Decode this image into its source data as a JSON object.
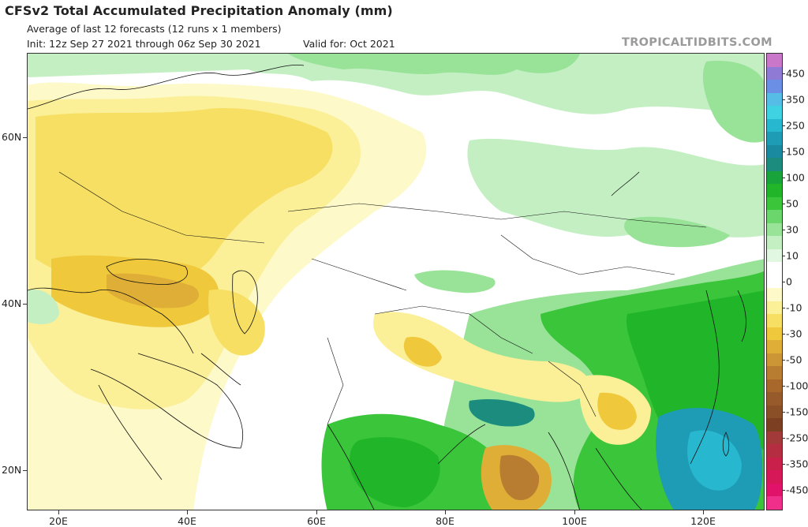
{
  "header": {
    "title": "CFSv2 Total Accumulated Precipitation Anomaly (mm)",
    "subtitle": "Average of last 12 forecasts (12 runs x 1 members)",
    "init": "Init: 12z Sep 27 2021 through 06z Sep 30 2021",
    "valid": "Valid for: Oct 2021",
    "brand": "TROPICALTIDBITS.COM"
  },
  "map": {
    "lon_range": [
      15,
      130
    ],
    "lat_range": [
      15,
      69
    ],
    "lat_labels": [
      "60N",
      "40N",
      "20N"
    ],
    "lon_labels": [
      "20E",
      "40E",
      "60E",
      "80E",
      "100E",
      "120E"
    ],
    "anomaly_regions": [
      {
        "name": "northern-europe-russia-dry",
        "category": "-10"
      },
      {
        "name": "turkey-caucasus-dry",
        "category": "-50"
      },
      {
        "name": "black-sea-coast-dry",
        "category": "-30"
      },
      {
        "name": "arctic-coast-wet",
        "category": "30"
      },
      {
        "name": "east-asia-wet",
        "category": "50"
      },
      {
        "name": "south-china-sea-wet",
        "category": "200"
      },
      {
        "name": "bay-of-bengal-dry",
        "category": "-100"
      },
      {
        "name": "himalaya-dry",
        "category": "-30"
      },
      {
        "name": "indian-subcontinent-wet",
        "category": "50"
      }
    ]
  },
  "colorbar": {
    "segments": [
      {
        "label": "",
        "color": "#c978c9"
      },
      {
        "label": "450",
        "color": "#8f7ad6"
      },
      {
        "label": "",
        "color": "#6c8fe6"
      },
      {
        "label": "350",
        "color": "#55bde6"
      },
      {
        "label": "",
        "color": "#3fd2e2"
      },
      {
        "label": "250",
        "color": "#27b7cf"
      },
      {
        "label": "",
        "color": "#1e9bb5"
      },
      {
        "label": "150",
        "color": "#198aa0"
      },
      {
        "label": "",
        "color": "#1c8c7e"
      },
      {
        "label": "100",
        "color": "#19a33b"
      },
      {
        "label": "",
        "color": "#21b62a"
      },
      {
        "label": "50",
        "color": "#3bc53b"
      },
      {
        "label": "",
        "color": "#6bd66b"
      },
      {
        "label": "30",
        "color": "#98e398"
      },
      {
        "label": "",
        "color": "#c3efc3"
      },
      {
        "label": "10",
        "color": "#e2f7e2"
      },
      {
        "label": "",
        "color": "#ffffff"
      },
      {
        "label": "0",
        "color": "#ffffff"
      },
      {
        "label": "",
        "color": "#fdf9c8"
      },
      {
        "label": "-10",
        "color": "#fbef97"
      },
      {
        "label": "",
        "color": "#f6df62"
      },
      {
        "label": "-30",
        "color": "#efc93b"
      },
      {
        "label": "",
        "color": "#dfae37"
      },
      {
        "label": "-50",
        "color": "#cc9535"
      },
      {
        "label": "",
        "color": "#b97d31"
      },
      {
        "label": "-100",
        "color": "#a8682c"
      },
      {
        "label": "",
        "color": "#975a2a"
      },
      {
        "label": "-150",
        "color": "#8a4f27"
      },
      {
        "label": "",
        "color": "#7d3f22"
      },
      {
        "label": "-250",
        "color": "#a13a39"
      },
      {
        "label": "",
        "color": "#b52d41"
      },
      {
        "label": "-350",
        "color": "#c81f4b"
      },
      {
        "label": "",
        "color": "#d61758"
      },
      {
        "label": "-450",
        "color": "#e0126a"
      },
      {
        "label": "",
        "color": "#f02f8a"
      }
    ]
  }
}
